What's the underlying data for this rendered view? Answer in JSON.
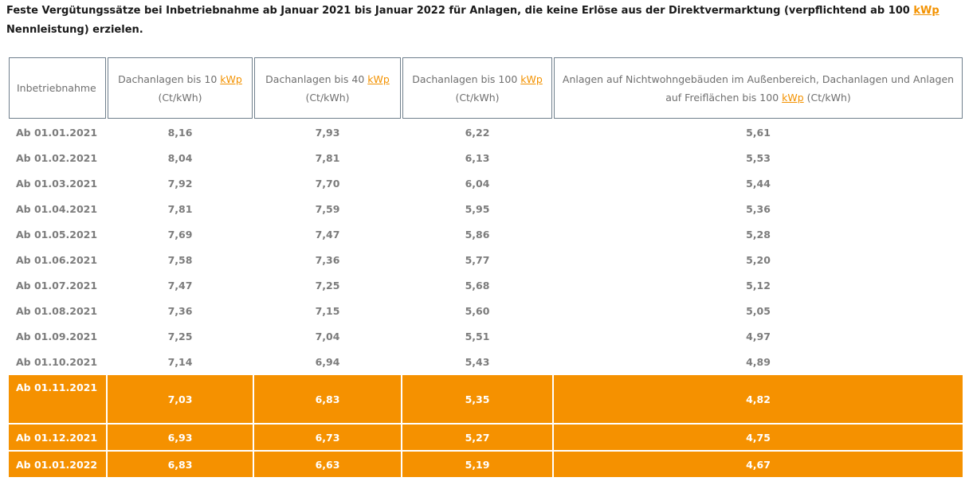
{
  "intro": {
    "text_before": "Feste Vergütungssätze bei Inbetriebnahme ab Januar 2021 bis Januar 2022 für Anlagen, die keine Erlöse aus der Direktvermarktung (verpflichtend ab 100 ",
    "link": "kWp",
    "text_after": " Nennleistung) erzielen."
  },
  "table": {
    "headers": [
      {
        "before": "Inbetriebnahme",
        "link": "",
        "after": ""
      },
      {
        "before": "Dachanlagen bis 10 ",
        "link": "kWp",
        "after": " (Ct/kWh)"
      },
      {
        "before": "Dachanlagen bis 40 ",
        "link": "kWp",
        "after": " (Ct/kWh)"
      },
      {
        "before": "Dachanlagen bis 100 ",
        "link": "kWp",
        "after": " (Ct/kWh)"
      },
      {
        "before": "Anlagen auf Nichtwohngebäuden im Außenbereich, Dachanlagen und Anlagen auf Freiflächen bis 100 ",
        "link": "kWp",
        "after": " (Ct/kWh)"
      }
    ],
    "rows": [
      [
        "Ab 01.01.2021",
        "8,16",
        "7,93",
        "6,22",
        "5,61"
      ],
      [
        "Ab 01.02.2021",
        "8,04",
        "7,81",
        "6,13",
        "5,53"
      ],
      [
        "Ab 01.03.2021",
        "7,92",
        "7,70",
        "6,04",
        "5,44"
      ],
      [
        "Ab 01.04.2021",
        "7,81",
        "7,59",
        "5,95",
        "5,36"
      ],
      [
        "Ab 01.05.2021",
        "7,69",
        "7,47",
        "5,86",
        "5,28"
      ],
      [
        "Ab 01.06.2021",
        "7,58",
        "7,36",
        "5,77",
        "5,20"
      ],
      [
        "Ab 01.07.2021",
        "7,47",
        "7,25",
        "5,68",
        "5,12"
      ],
      [
        "Ab 01.08.2021",
        "7,36",
        "7,15",
        "5,60",
        "5,05"
      ],
      [
        "Ab 01.09.2021",
        "7,25",
        "7,04",
        "5,51",
        "4,97"
      ],
      [
        "Ab 01.10.2021",
        "7,14",
        "6,94",
        "5,43",
        "4,89"
      ],
      [
        "Ab 01.11.2021",
        "7,03",
        "6,83",
        "5,35",
        "4,82"
      ],
      [
        "Ab 01.12.2021",
        "6,93",
        "6,73",
        "5,27",
        "4,75"
      ],
      [
        "Ab 01.01.2022",
        "6,83",
        "6,63",
        "5,19",
        "4,67"
      ]
    ],
    "highlighted_from_row": 10,
    "highlight_color": "#f59100",
    "link_color": "#f39200"
  }
}
